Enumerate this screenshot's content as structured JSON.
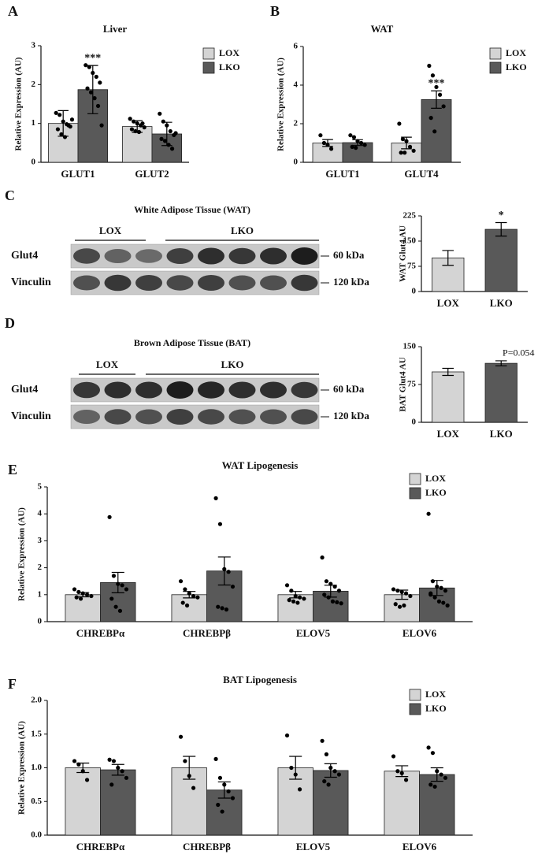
{
  "chart_data": [
    {
      "type": "bar",
      "panel": "A",
      "title": "Liver",
      "y_label": "Relative Expression (AU)",
      "categories": [
        "GLUT1",
        "GLUT2"
      ],
      "series": [
        {
          "name": "LOX",
          "color": "#d4d4d4",
          "values": [
            1.0,
            0.92
          ],
          "errors": [
            0.33,
            0.15
          ],
          "significance": [
            null,
            null
          ],
          "points": [
            [
              1.27,
              1.22,
              1.05,
              0.98,
              0.92,
              0.85,
              0.72,
              0.65,
              0.95,
              1.1
            ],
            [
              1.12,
              1.05,
              1.0,
              0.95,
              0.9,
              0.85,
              0.8,
              0.78,
              1.0
            ]
          ]
        },
        {
          "name": "LKO",
          "color": "#595959",
          "values": [
            1.87,
            0.73
          ],
          "errors": [
            0.62,
            0.3
          ],
          "significance": [
            "***",
            null
          ],
          "points": [
            [
              2.5,
              2.45,
              2.3,
              2.2,
              2.05,
              1.9,
              1.8,
              1.65,
              1.45,
              0.95
            ],
            [
              1.25,
              1.05,
              0.95,
              0.8,
              0.7,
              0.6,
              0.55,
              0.45,
              0.35,
              0.75
            ]
          ]
        }
      ],
      "ylim": [
        0,
        3
      ],
      "yticks": [
        0,
        1,
        2,
        3
      ],
      "legend": "right"
    },
    {
      "type": "bar",
      "panel": "B",
      "title": "WAT",
      "y_label": "Relative Expression (AU)",
      "categories": [
        "GLUT1",
        "GLUT4"
      ],
      "series": [
        {
          "name": "LOX",
          "color": "#d4d4d4",
          "values": [
            1.0,
            1.0
          ],
          "errors": [
            0.18,
            0.3
          ],
          "significance": [
            null,
            null
          ],
          "points": [
            [
              1.4,
              1.0,
              0.9,
              0.7
            ],
            [
              2.0,
              1.2,
              1.1,
              0.8,
              0.6,
              0.5,
              0.5
            ]
          ]
        },
        {
          "name": "LKO",
          "color": "#595959",
          "values": [
            1.02,
            3.25
          ],
          "errors": [
            0.15,
            0.45
          ],
          "significance": [
            null,
            "***"
          ],
          "points": [
            [
              1.4,
              1.3,
              1.1,
              1.0,
              0.9,
              0.8,
              0.75
            ],
            [
              5.0,
              4.5,
              3.9,
              3.5,
              2.9,
              2.3,
              1.6
            ]
          ]
        }
      ],
      "ylim": [
        0,
        6
      ],
      "yticks": [
        0,
        2,
        4,
        6
      ],
      "legend": "right"
    },
    {
      "type": "bar",
      "y_label": "WAT Glut4 AU",
      "categories": [
        "LOX",
        "LKO"
      ],
      "values": [
        100,
        185
      ],
      "errors": [
        22,
        20
      ],
      "colors": [
        "#d4d4d4",
        "#595959"
      ],
      "significance": [
        null,
        "*"
      ],
      "ylim": [
        0,
        225
      ],
      "yticks": [
        0,
        75,
        150,
        225
      ]
    },
    {
      "type": "bar",
      "y_label": "BAT Glut4 AU",
      "categories": [
        "LOX",
        "LKO"
      ],
      "values": [
        100,
        117
      ],
      "errors": [
        7,
        5
      ],
      "colors": [
        "#d4d4d4",
        "#595959"
      ],
      "significance": [
        null,
        "P=0.054"
      ],
      "ylim": [
        0,
        150
      ],
      "yticks": [
        0,
        75,
        150
      ]
    },
    {
      "type": "bar",
      "panel": "E",
      "title": "WAT  Lipogenesis",
      "y_label": "Relative Expression (AU)",
      "categories": [
        "CHREBPα",
        "CHREBPβ",
        "ELOV5",
        "ELOV6"
      ],
      "series": [
        {
          "name": "LOX",
          "color": "#d4d4d4",
          "values": [
            1.0,
            1.0,
            1.0,
            1.0
          ],
          "errors": [
            0.08,
            0.12,
            0.12,
            0.17
          ],
          "points": [
            [
              1.2,
              1.1,
              1.05,
              1.0,
              0.95,
              0.9,
              0.85
            ],
            [
              1.5,
              1.2,
              1.05,
              0.95,
              0.9,
              0.7,
              0.6
            ],
            [
              1.35,
              1.15,
              0.95,
              0.9,
              0.85,
              0.8,
              0.75,
              0.7
            ],
            [
              1.2,
              1.15,
              1.1,
              1.05,
              0.95,
              0.65,
              0.55,
              0.6
            ]
          ]
        },
        {
          "name": "LKO",
          "color": "#595959",
          "values": [
            1.45,
            1.88,
            1.13,
            1.25
          ],
          "errors": [
            0.38,
            0.52,
            0.22,
            0.28
          ],
          "points": [
            [
              3.88,
              1.7,
              1.4,
              1.35,
              1.2,
              0.85,
              0.55,
              0.4
            ],
            [
              4.58,
              3.62,
              1.95,
              1.85,
              1.3,
              0.55,
              0.5,
              0.45
            ],
            [
              2.38,
              1.5,
              1.4,
              1.3,
              1.15,
              1.0,
              0.9,
              0.75,
              0.72,
              0.68
            ],
            [
              4.0,
              1.5,
              1.3,
              1.25,
              1.15,
              1.05,
              0.9,
              0.75,
              0.7,
              0.6,
              1.0
            ]
          ]
        }
      ],
      "ylim": [
        0,
        5
      ],
      "yticks": [
        0,
        1,
        2,
        3,
        4,
        5
      ],
      "legend": "top-right"
    },
    {
      "type": "bar",
      "panel": "F",
      "title": "BAT  Lipogenesis",
      "y_label": "Relative Expression (AU)",
      "categories": [
        "CHREBPα",
        "CHREBPβ",
        "ELOV5",
        "ELOV6"
      ],
      "series": [
        {
          "name": "LOX",
          "color": "#d4d4d4",
          "values": [
            1.0,
            1.0,
            1.0,
            0.95
          ],
          "errors": [
            0.07,
            0.17,
            0.17,
            0.08
          ],
          "points": [
            [
              1.1,
              1.05,
              0.95,
              0.82
            ],
            [
              1.46,
              1.1,
              0.88,
              0.7
            ],
            [
              1.48,
              1.0,
              0.9,
              0.68
            ],
            [
              1.17,
              0.95,
              0.92,
              0.82
            ]
          ]
        },
        {
          "name": "LKO",
          "color": "#595959",
          "values": [
            0.97,
            0.67,
            0.96,
            0.9
          ],
          "errors": [
            0.08,
            0.12,
            0.1,
            0.1
          ],
          "points": [
            [
              1.12,
              1.1,
              1.0,
              0.95,
              0.85,
              0.75
            ],
            [
              1.13,
              0.85,
              0.75,
              0.65,
              0.55,
              0.45,
              0.35
            ],
            [
              1.4,
              1.2,
              1.0,
              0.95,
              0.9,
              0.8,
              0.75
            ],
            [
              1.3,
              1.22,
              0.95,
              0.9,
              0.85,
              0.75,
              0.72
            ]
          ]
        }
      ],
      "ylim": [
        0,
        2
      ],
      "yticks": [
        {
          "value": 0,
          "label": "0.0"
        },
        {
          "value": 0.5,
          "label": "0.5"
        },
        {
          "value": 1,
          "label": "1.0"
        },
        {
          "value": 1.5,
          "label": "1.5"
        },
        {
          "value": 2,
          "label": "2.0"
        }
      ],
      "legend": "top-right"
    }
  ],
  "blots": [
    {
      "panel": "C",
      "title": "White Adipose Tissue (WAT)",
      "groups": [
        "LOX",
        "LKO"
      ],
      "rows": [
        "Glut4",
        "Vinculin"
      ],
      "sizes": [
        "60 kDa",
        "120 kDa"
      ]
    },
    {
      "panel": "D",
      "title": "Brown Adipose Tissue (BAT)",
      "groups": [
        "LOX",
        "LKO"
      ],
      "rows": [
        "Glut4",
        "Vinculin"
      ],
      "sizes": [
        "60 kDa",
        "120 kDa"
      ]
    }
  ]
}
